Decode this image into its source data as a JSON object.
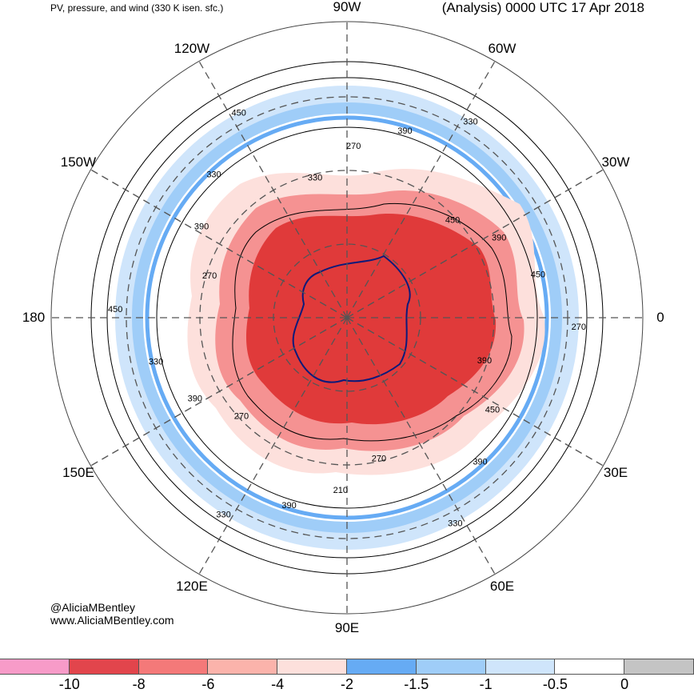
{
  "header": {
    "title_left": "PV, pressure, and wind (330 K isen. sfc.)",
    "title_right": "(Analysis) 0000 UTC 17 Apr 2018"
  },
  "credit": {
    "handle": "@AliciaMBentley",
    "website": "www.AliciaMBentley.com"
  },
  "map": {
    "projection": "south-polar-stereographic",
    "longitude_labels": [
      {
        "text": "90W",
        "deg": -90
      },
      {
        "text": "60W",
        "deg": -60
      },
      {
        "text": "30W",
        "deg": -30
      },
      {
        "text": "0",
        "deg": 0
      },
      {
        "text": "30E",
        "deg": 30
      },
      {
        "text": "60E",
        "deg": 60
      },
      {
        "text": "90E",
        "deg": 90
      },
      {
        "text": "120E",
        "deg": 120
      },
      {
        "text": "150E",
        "deg": 150
      },
      {
        "text": "180",
        "deg": 180
      },
      {
        "text": "150W",
        "deg": -150
      },
      {
        "text": "120W",
        "deg": -120
      }
    ],
    "contour_labels": [
      "390",
      "450",
      "390",
      "330",
      "270",
      "210",
      "390",
      "330",
      "270",
      "390",
      "330",
      "450",
      "270",
      "390",
      "330",
      "450",
      "330",
      "270",
      "390",
      "330",
      "450",
      "390",
      "450",
      "270"
    ],
    "colors": {
      "pv_strong": "#e03a3a",
      "pv_moderate": "#f59292",
      "pv_weak": "#fcd9d5",
      "pv_positive": "#a9cdf5",
      "coast": "#0c1a7a"
    }
  },
  "colorbar": {
    "ticks": [
      "-10",
      "-8",
      "-6",
      "-4",
      "-2",
      "-1.5",
      "-1",
      "-0.5",
      "0"
    ],
    "colors": [
      "#f79bc8",
      "#e2454c",
      "#f47979",
      "#fbb3ab",
      "#fde0dc",
      "#66abf4",
      "#9fcdf8",
      "#cfe5fb",
      "#ffffff",
      "#c4c4c4"
    ]
  }
}
